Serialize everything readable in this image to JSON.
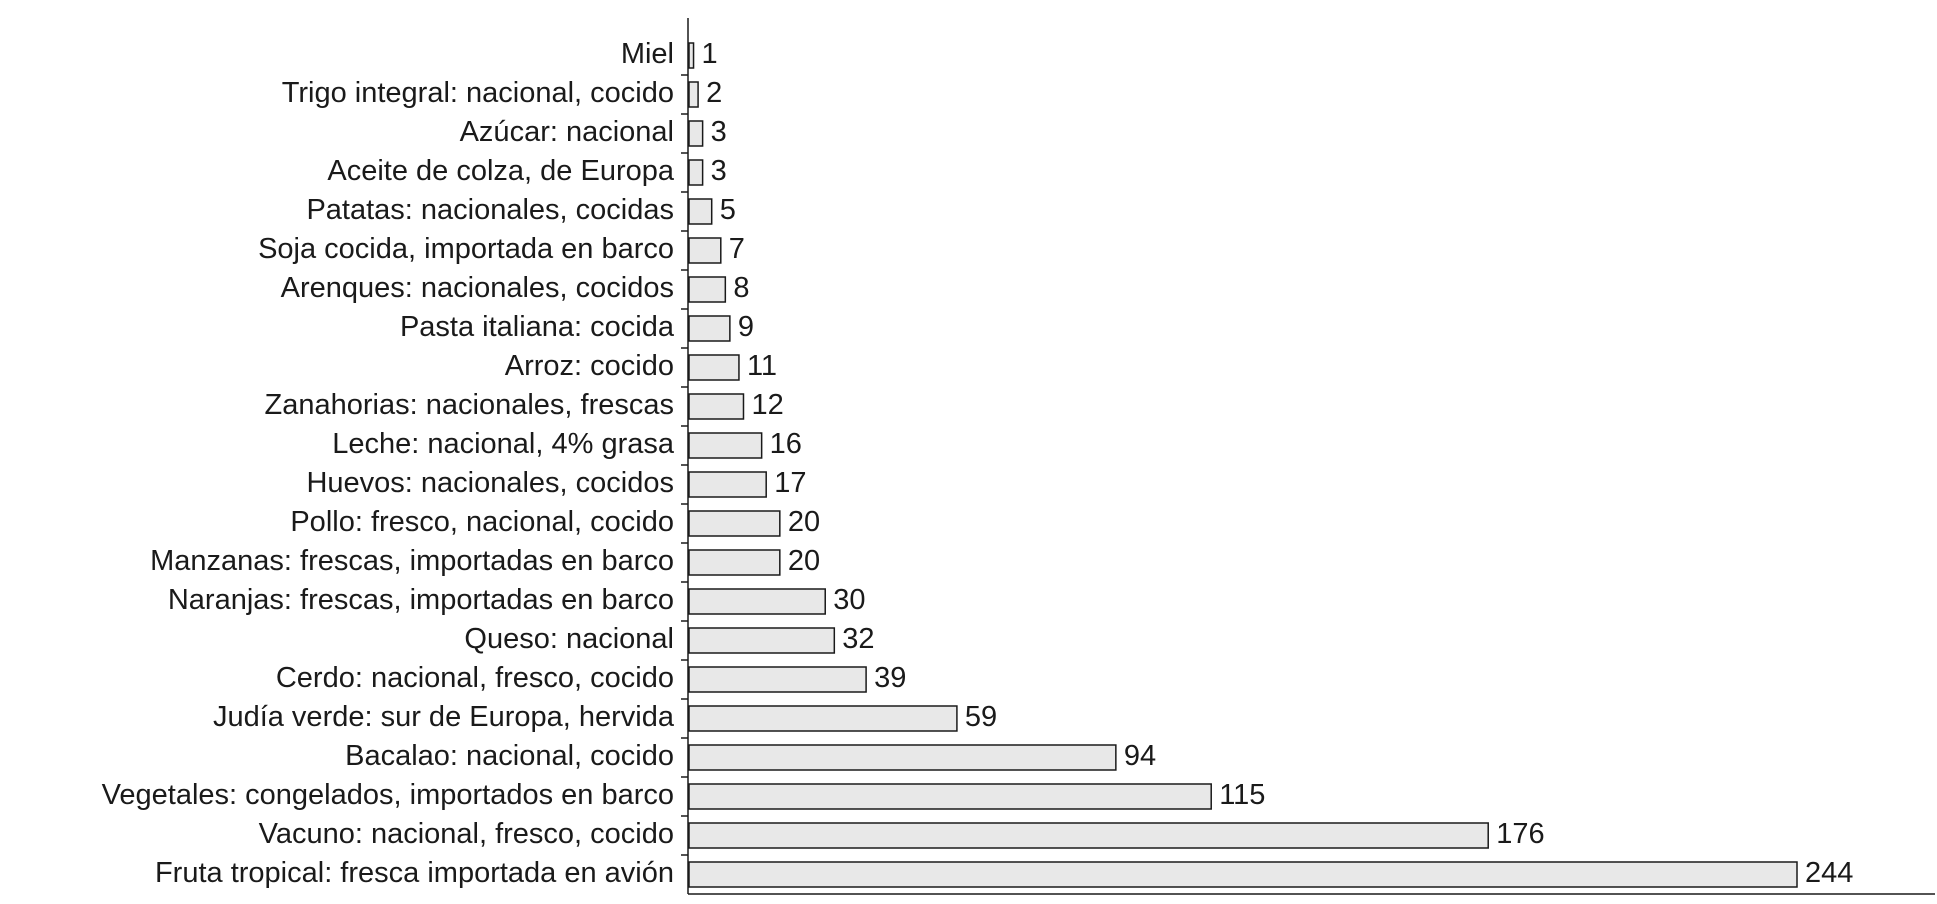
{
  "chart_data": {
    "type": "barh",
    "categories": [
      "Miel",
      "Trigo integral: nacional, cocido",
      "Azúcar: nacional",
      "Aceite de colza, de Europa",
      "Patatas: nacionales, cocidas",
      "Soja cocida, importada en barco",
      "Arenques: nacionales, cocidos",
      "Pasta italiana: cocida",
      "Arroz: cocido",
      "Zanahorias: nacionales, frescas",
      "Leche: nacional, 4% grasa",
      "Huevos: nacionales, cocidos",
      "Pollo: fresco, nacional, cocido",
      "Manzanas: frescas, importadas en barco",
      "Naranjas: frescas, importadas en barco",
      "Queso: nacional",
      "Cerdo: nacional, fresco, cocido",
      "Judía verde: sur de Europa, hervida",
      "Bacalao: nacional, cocido",
      "Vegetales: congelados, importados en barco",
      "Vacuno: nacional, fresco, cocido",
      "Fruta tropical: fresca importada en avión"
    ],
    "values": [
      1,
      2,
      3,
      3,
      5,
      7,
      8,
      9,
      11,
      12,
      16,
      17,
      20,
      20,
      30,
      32,
      39,
      59,
      94,
      115,
      176,
      244
    ],
    "color": "#e8e8e8"
  }
}
